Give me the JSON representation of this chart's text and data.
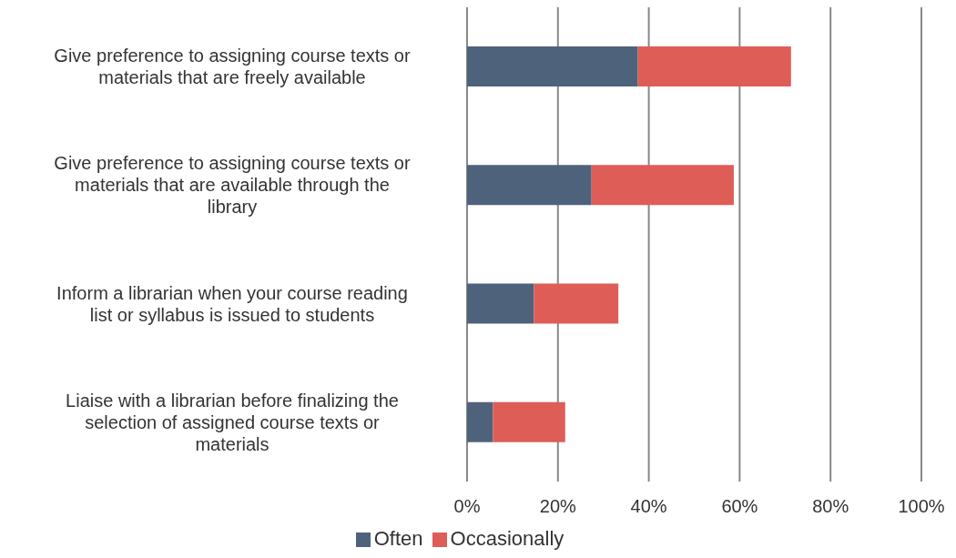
{
  "chart_data": {
    "type": "bar",
    "orientation": "horizontal",
    "stacked": true,
    "categories": [
      "Give preference to assigning course texts or materials that are freely available",
      "Give preference to assigning course texts or materials that are available through the library",
      "Inform a librarian when your course reading list or syllabus is issued to students",
      "Liaise with a librarian before finalizing the selection of assigned course texts or materials"
    ],
    "series": [
      {
        "name": "Often",
        "color": "#4f627c",
        "values": [
          37.6,
          27.4,
          14.7,
          5.7
        ]
      },
      {
        "name": "Occasionally",
        "color": "#de5d57",
        "values": [
          33.7,
          31.3,
          18.6,
          15.9
        ]
      }
    ],
    "xlim": [
      0,
      100
    ],
    "xticks": [
      {
        "value": 0,
        "label": "0%"
      },
      {
        "value": 20,
        "label": "20%"
      },
      {
        "value": 40,
        "label": "40%"
      },
      {
        "value": 60,
        "label": "60%"
      },
      {
        "value": 80,
        "label": "80%"
      },
      {
        "value": 100,
        "label": "100%"
      }
    ],
    "grid": "x",
    "legend": "bottom"
  }
}
